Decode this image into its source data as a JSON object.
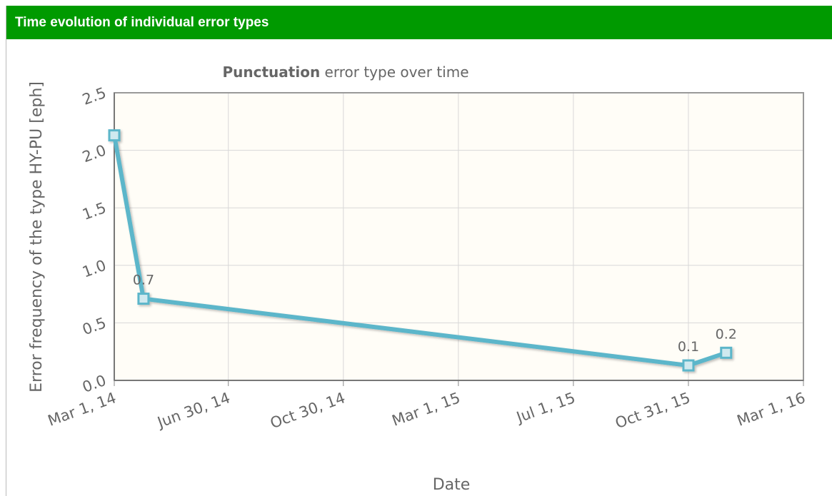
{
  "header": {
    "title": "Time evolution of individual error types"
  },
  "chart_data": {
    "type": "line",
    "title_bold": "Punctuation",
    "title": "error type over time",
    "x_label": "Date",
    "y_label": "Error frequency of the type HY-PU [eph]",
    "x": [
      "2014-03-01",
      "2014-04-01",
      "2015-10-31",
      "2015-12-10"
    ],
    "series": [
      {
        "name": "HY-PU",
        "color": "#5bb6ca",
        "values": [
          2.13,
          0.71,
          0.13,
          0.24
        ],
        "value_labels": [
          null,
          "0.7",
          "0.1",
          "0.2"
        ]
      }
    ],
    "xlim": [
      "2014-03-01",
      "2016-03-01"
    ],
    "xticks": [
      {
        "value": "2014-03-01",
        "label": "Mar 1, 14"
      },
      {
        "value": "2014-06-30",
        "label": "Jun 30, 14"
      },
      {
        "value": "2014-10-30",
        "label": "Oct 30, 14"
      },
      {
        "value": "2015-03-01",
        "label": "Mar 1, 15"
      },
      {
        "value": "2015-07-01",
        "label": "Jul 1, 15"
      },
      {
        "value": "2015-10-31",
        "label": "Oct 31, 15"
      },
      {
        "value": "2016-03-01",
        "label": "Mar 1, 16"
      }
    ],
    "ylim": [
      0,
      2.5
    ],
    "yticks": [
      {
        "value": 0,
        "label": "0.0"
      },
      0.5,
      {
        "value": 1,
        "label": "1.0"
      },
      1.5,
      {
        "value": 2,
        "label": "2.0"
      },
      2.5
    ],
    "grid": true
  }
}
